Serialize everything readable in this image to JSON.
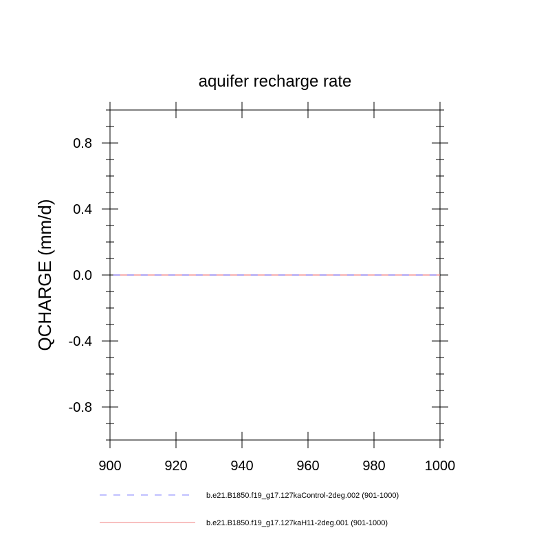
{
  "chart_data": {
    "type": "line",
    "title": "aquifer recharge rate",
    "xlabel": "",
    "ylabel": "QCHARGE  (mm/d)",
    "xlim": [
      900,
      1000
    ],
    "ylim": [
      -1.0,
      1.0
    ],
    "x_ticks": [
      900,
      920,
      940,
      960,
      980,
      1000
    ],
    "x_tick_labels": [
      "900",
      "920",
      "940",
      "960",
      "980",
      "1000"
    ],
    "y_ticks": [
      -0.8,
      -0.4,
      0.0,
      0.4,
      0.8
    ],
    "y_tick_labels": [
      "-0.8",
      "-0.4",
      "0.0",
      "0.4",
      "0.8"
    ],
    "grid": false,
    "legend_position": "bottom",
    "series": [
      {
        "name": "b.e21.B1850.f19_g17.127kaControl-2deg.002 (901-1000)",
        "color": "#8080ff",
        "style": "dashed",
        "x": [
          901,
          1000
        ],
        "values": [
          0.0,
          0.0
        ]
      },
      {
        "name": "b.e21.B1850.f19_g17.127kaH11-2deg.001 (901-1000)",
        "color": "#f08080",
        "style": "solid",
        "x": [
          901,
          1000
        ],
        "values": [
          0.0,
          0.0
        ]
      }
    ]
  }
}
